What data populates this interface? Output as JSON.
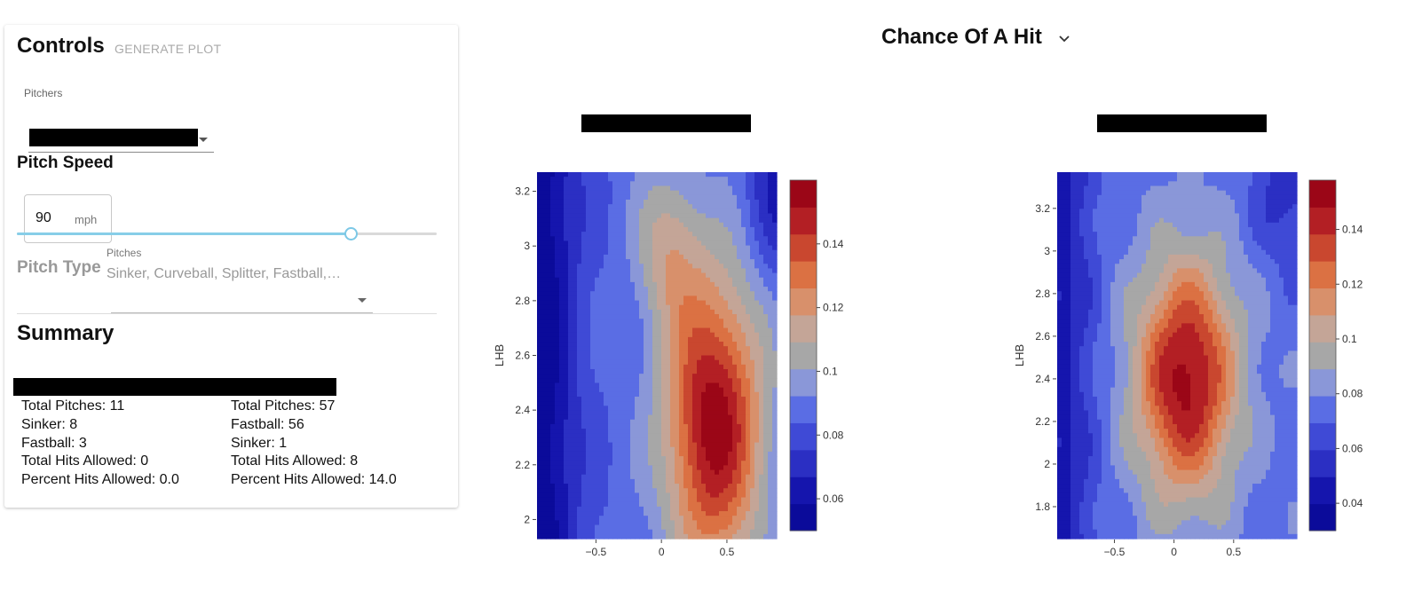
{
  "controls": {
    "title": "Controls",
    "generate_button": "GENERATE PLOT",
    "pitchers_label": "Pitchers"
  },
  "pitch_speed": {
    "title": "Pitch Speed",
    "value": "90",
    "unit": "mph",
    "slider_fraction": 0.79
  },
  "pitch_type": {
    "title": "Pitch Type",
    "label": "Pitches",
    "value": "Sinker, Curveball, Splitter, Fastball,…"
  },
  "summary": {
    "title": "Summary",
    "left": [
      "Total Pitches: 11",
      "Sinker: 8",
      "Fastball: 3",
      "Total Hits Allowed: 0",
      "Percent Hits Allowed: 0.0"
    ],
    "right": [
      "Total Pitches: 57",
      "Fastball: 56",
      "Sinker: 1",
      "Total Hits Allowed: 8",
      "Percent Hits Allowed: 14.0"
    ]
  },
  "metric_selector": "Chance Of A Hit",
  "chart_data": [
    {
      "type": "heatmap",
      "style": "filled contour",
      "ylabel": "LHB",
      "xlabel": "",
      "x_ticks": [
        "−0.5",
        "0",
        "0.5"
      ],
      "y_ticks": [
        "2",
        "2.2",
        "2.4",
        "2.6",
        "2.8",
        "3",
        "3.2"
      ],
      "xlim": [
        -0.95,
        0.88
      ],
      "ylim": [
        1.93,
        3.27
      ],
      "colorbar_ticks": [
        "0.06",
        "0.08",
        "0.1",
        "0.12",
        "0.14"
      ],
      "colorbar_range": [
        0.05,
        0.16
      ],
      "hotspot": {
        "x": 0.4,
        "y": 2.35,
        "peak": 0.155
      }
    },
    {
      "type": "heatmap",
      "style": "filled contour",
      "ylabel": "LHB",
      "xlabel": "",
      "x_ticks": [
        "−0.5",
        "0",
        "0.5"
      ],
      "y_ticks": [
        "1.8",
        "2",
        "2.2",
        "2.4",
        "2.6",
        "2.8",
        "3",
        "3.2"
      ],
      "xlim": [
        -0.98,
        1.03
      ],
      "ylim": [
        1.65,
        3.37
      ],
      "colorbar_ticks": [
        "0.04",
        "0.06",
        "0.08",
        "0.1",
        "0.12",
        "0.14"
      ],
      "colorbar_range": [
        0.03,
        0.158
      ],
      "hotspot": {
        "x": 0.1,
        "y": 2.4,
        "peak": 0.153
      }
    }
  ],
  "colors": {
    "scale": [
      "#0b0b9a",
      "#1515ad",
      "#2b2fc3",
      "#3f4ad6",
      "#5a6de4",
      "#8a97d8",
      "#a7a7a7",
      "#c4a597",
      "#d8906b",
      "#db7143",
      "#c9472f",
      "#b31f24",
      "#9b0617"
    ],
    "slider": "#87cee8"
  }
}
